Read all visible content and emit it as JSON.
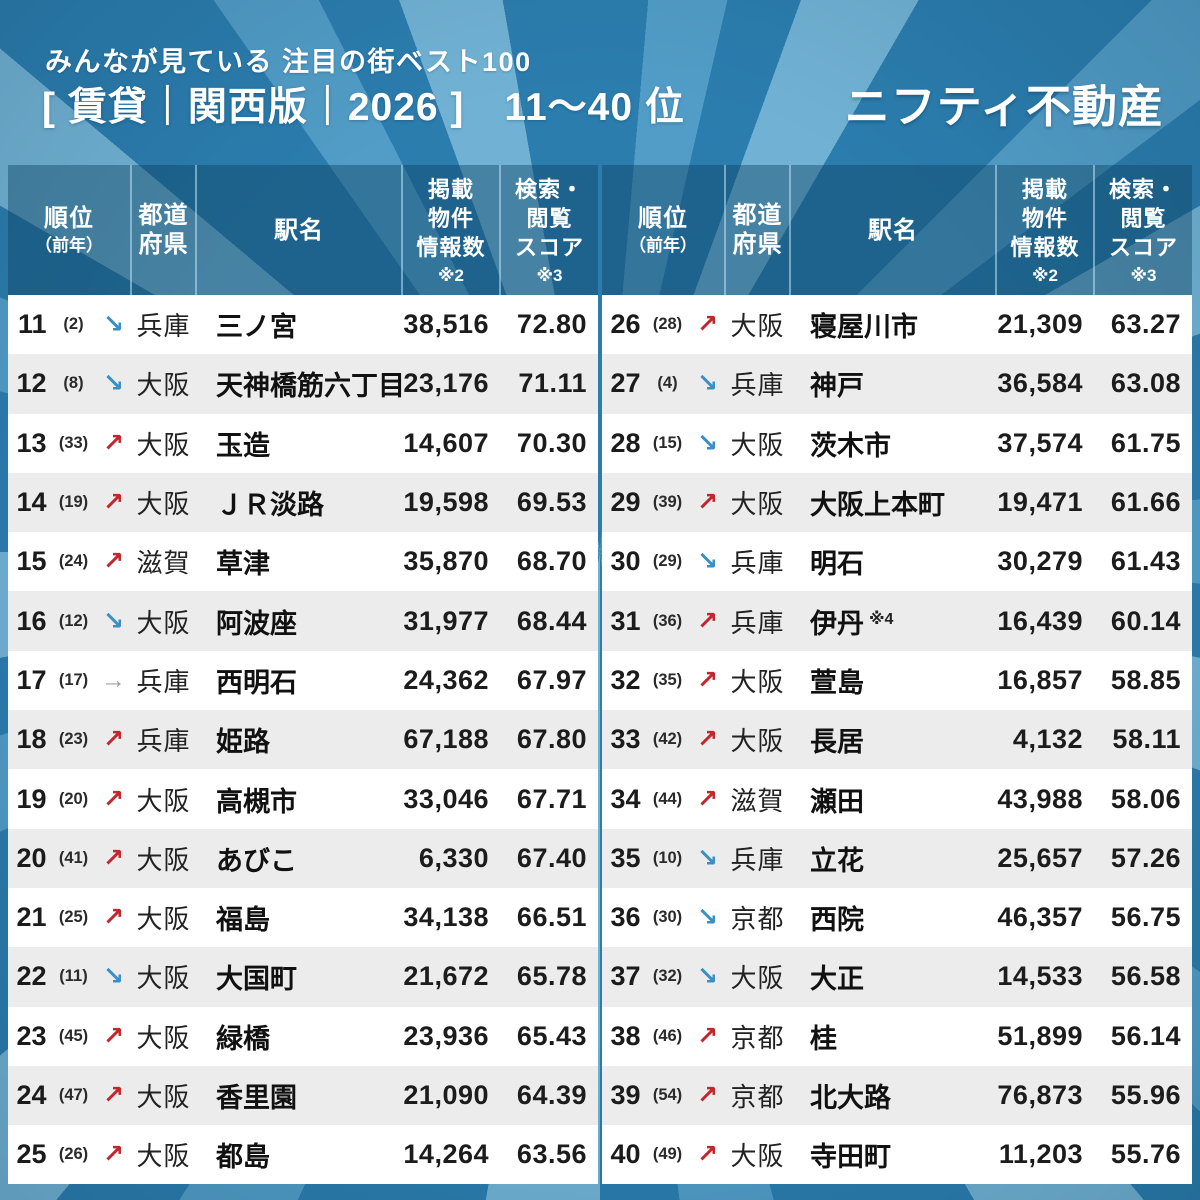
{
  "header": {
    "subtitle": "みんなが見ている 注目の街ベスト100",
    "title": "[ 賃貸｜関西版｜2026 ]　11〜40 位",
    "logo": "ニフティ不動産"
  },
  "table_header": {
    "rank_main": "順位",
    "rank_sub": "（前年）",
    "pref_line1": "都道",
    "pref_line2": "府県",
    "station": "駅名",
    "listings_line1": "掲載",
    "listings_line2": "物件",
    "listings_line3": "情報数",
    "listings_note": "※2",
    "score_line1": "検索・",
    "score_line2": "閲覧",
    "score_line3": "スコア",
    "score_note": "※3"
  },
  "colors": {
    "background_base": "#2b7dae",
    "background_ray_light": "#71b2d4",
    "background_ray_mid": "#519dc7",
    "header_overlay": "rgba(13,64,95,0.42)",
    "row_alt": "#ececec",
    "trend_up": "#c1272d",
    "trend_down": "#3a8fc5",
    "trend_flat": "#9aa0a3"
  },
  "chart_data": {
    "type": "table",
    "title": "みんなが見ている 注目の街ベスト100 [賃貸｜関西版｜2026] 11〜40位",
    "columns": [
      "順位（前年）",
      "前年比トレンド",
      "都道府県",
      "駅名",
      "掲載物件情報数 ※2",
      "検索・閲覧スコア ※3"
    ],
    "layout": "two tables side by side: rows 0-14 left (ranks 11-25), rows 15-29 right (ranks 26-40)",
    "rows": [
      {
        "rank": "11",
        "prev": "(2)",
        "trend": "down",
        "pref": "兵庫",
        "station": "三ノ宮",
        "listings": "38,516",
        "score": "72.80"
      },
      {
        "rank": "12",
        "prev": "(8)",
        "trend": "down",
        "pref": "大阪",
        "station": "天神橋筋六丁目",
        "listings": "23,176",
        "score": "71.11"
      },
      {
        "rank": "13",
        "prev": "(33)",
        "trend": "up",
        "pref": "大阪",
        "station": "玉造",
        "listings": "14,607",
        "score": "70.30"
      },
      {
        "rank": "14",
        "prev": "(19)",
        "trend": "up",
        "pref": "大阪",
        "station": "ＪＲ淡路",
        "listings": "19,598",
        "score": "69.53"
      },
      {
        "rank": "15",
        "prev": "(24)",
        "trend": "up",
        "pref": "滋賀",
        "station": "草津",
        "listings": "35,870",
        "score": "68.70"
      },
      {
        "rank": "16",
        "prev": "(12)",
        "trend": "down",
        "pref": "大阪",
        "station": "阿波座",
        "listings": "31,977",
        "score": "68.44"
      },
      {
        "rank": "17",
        "prev": "(17)",
        "trend": "flat",
        "pref": "兵庫",
        "station": "西明石",
        "listings": "24,362",
        "score": "67.97"
      },
      {
        "rank": "18",
        "prev": "(23)",
        "trend": "up",
        "pref": "兵庫",
        "station": "姫路",
        "listings": "67,188",
        "score": "67.80"
      },
      {
        "rank": "19",
        "prev": "(20)",
        "trend": "up",
        "pref": "大阪",
        "station": "高槻市",
        "listings": "33,046",
        "score": "67.71"
      },
      {
        "rank": "20",
        "prev": "(41)",
        "trend": "up",
        "pref": "大阪",
        "station": "あびこ",
        "listings": "6,330",
        "score": "67.40"
      },
      {
        "rank": "21",
        "prev": "(25)",
        "trend": "up",
        "pref": "大阪",
        "station": "福島",
        "listings": "34,138",
        "score": "66.51"
      },
      {
        "rank": "22",
        "prev": "(11)",
        "trend": "down",
        "pref": "大阪",
        "station": "大国町",
        "listings": "21,672",
        "score": "65.78"
      },
      {
        "rank": "23",
        "prev": "(45)",
        "trend": "up",
        "pref": "大阪",
        "station": "緑橋",
        "listings": "23,936",
        "score": "65.43"
      },
      {
        "rank": "24",
        "prev": "(47)",
        "trend": "up",
        "pref": "大阪",
        "station": "香里園",
        "listings": "21,090",
        "score": "64.39"
      },
      {
        "rank": "25",
        "prev": "(26)",
        "trend": "up",
        "pref": "大阪",
        "station": "都島",
        "listings": "14,264",
        "score": "63.56"
      },
      {
        "rank": "26",
        "prev": "(28)",
        "trend": "up",
        "pref": "大阪",
        "station": "寝屋川市",
        "listings": "21,309",
        "score": "63.27"
      },
      {
        "rank": "27",
        "prev": "(4)",
        "trend": "down",
        "pref": "兵庫",
        "station": "神戸",
        "listings": "36,584",
        "score": "63.08"
      },
      {
        "rank": "28",
        "prev": "(15)",
        "trend": "down",
        "pref": "大阪",
        "station": "茨木市",
        "listings": "37,574",
        "score": "61.75"
      },
      {
        "rank": "29",
        "prev": "(39)",
        "trend": "up",
        "pref": "大阪",
        "station": "大阪上本町",
        "listings": "19,471",
        "score": "61.66"
      },
      {
        "rank": "30",
        "prev": "(29)",
        "trend": "down",
        "pref": "兵庫",
        "station": "明石",
        "listings": "30,279",
        "score": "61.43"
      },
      {
        "rank": "31",
        "prev": "(36)",
        "trend": "up",
        "pref": "兵庫",
        "station": "伊丹",
        "note": "※4",
        "listings": "16,439",
        "score": "60.14"
      },
      {
        "rank": "32",
        "prev": "(35)",
        "trend": "up",
        "pref": "大阪",
        "station": "萱島",
        "listings": "16,857",
        "score": "58.85"
      },
      {
        "rank": "33",
        "prev": "(42)",
        "trend": "up",
        "pref": "大阪",
        "station": "長居",
        "listings": "4,132",
        "score": "58.11"
      },
      {
        "rank": "34",
        "prev": "(44)",
        "trend": "up",
        "pref": "滋賀",
        "station": "瀬田",
        "listings": "43,988",
        "score": "58.06"
      },
      {
        "rank": "35",
        "prev": "(10)",
        "trend": "down",
        "pref": "兵庫",
        "station": "立花",
        "listings": "25,657",
        "score": "57.26"
      },
      {
        "rank": "36",
        "prev": "(30)",
        "trend": "down",
        "pref": "京都",
        "station": "西院",
        "listings": "46,357",
        "score": "56.75"
      },
      {
        "rank": "37",
        "prev": "(32)",
        "trend": "down",
        "pref": "大阪",
        "station": "大正",
        "listings": "14,533",
        "score": "56.58"
      },
      {
        "rank": "38",
        "prev": "(46)",
        "trend": "up",
        "pref": "京都",
        "station": "桂",
        "listings": "51,899",
        "score": "56.14"
      },
      {
        "rank": "39",
        "prev": "(54)",
        "trend": "up",
        "pref": "京都",
        "station": "北大路",
        "listings": "76,873",
        "score": "55.96"
      },
      {
        "rank": "40",
        "prev": "(49)",
        "trend": "up",
        "pref": "大阪",
        "station": "寺田町",
        "listings": "11,203",
        "score": "55.76"
      }
    ]
  }
}
